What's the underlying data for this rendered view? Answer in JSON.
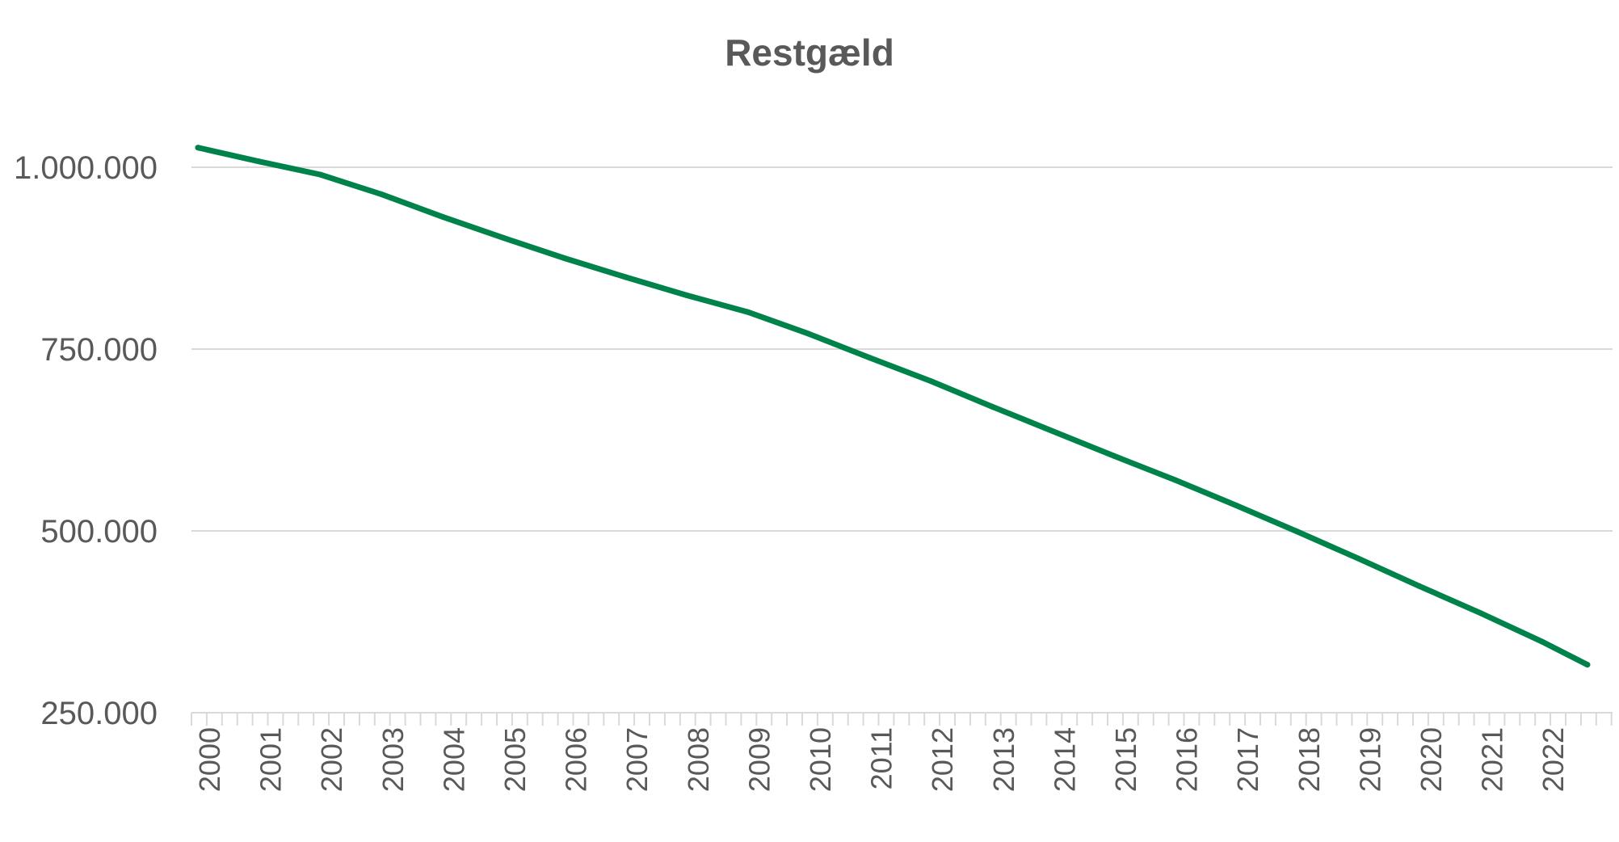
{
  "chart_data": {
    "type": "line",
    "title": "Restgæld",
    "xlabel": "",
    "ylabel": "",
    "grid": true,
    "legend": "none",
    "line_color": "#00834A",
    "grid_color": "#D9D9D9",
    "text_color": "#595959",
    "ylim": [
      250000,
      1100000
    ],
    "yticks": [
      250000,
      500000,
      750000,
      1000000
    ],
    "ytick_labels": [
      "250.000",
      "500.000",
      "750.000",
      "1.000.000"
    ],
    "x_categories": [
      "2000",
      "2001",
      "2002",
      "2003",
      "2004",
      "2005",
      "2006",
      "2007",
      "2008",
      "2009",
      "2010",
      "2011",
      "2012",
      "2013",
      "2014",
      "2015",
      "2016",
      "2017",
      "2018",
      "2019",
      "2020",
      "2021",
      "2022"
    ],
    "minor_ticks_per_year": 4,
    "series": [
      {
        "x": [
          2000,
          2001,
          2002,
          2003,
          2004,
          2005,
          2006,
          2007,
          2008,
          2009,
          2010,
          2011,
          2012,
          2013,
          2014,
          2015,
          2016,
          2017,
          2018,
          2019,
          2020,
          2021,
          2022,
          2022.75
        ],
        "values": [
          1027000,
          1008000,
          990000,
          963000,
          932000,
          903000,
          875000,
          849000,
          824000,
          801000,
          771000,
          738000,
          706000,
          671000,
          637000,
          603000,
          570000,
          535000,
          499000,
          462000,
          424000,
          387000,
          348000,
          316000
        ]
      }
    ]
  }
}
